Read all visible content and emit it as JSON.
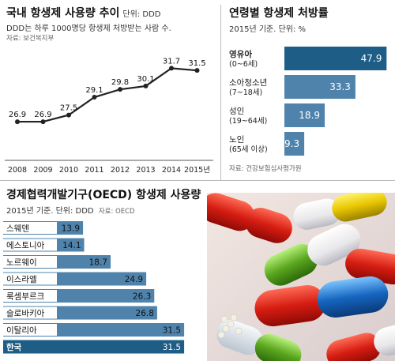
{
  "trend": {
    "title": "국내 항생제 사용량 추이",
    "unit": "단위: DDD",
    "subtitle": "DDD는 하루 1000명당 항생제 처방받는 사람 수.",
    "source": "자료: 보건복지부"
  },
  "age": {
    "title": "연령별 항생제 처방률",
    "subtitle": "2015년 기준. 단위: %",
    "source": "자료: 건강보험심사평가원"
  },
  "oecd": {
    "title": "경제협력개발기구(OECD) 항생제 사용량",
    "subtitle": "2015년 기준. 단위: DDD",
    "source_inline": "자료: OECD"
  },
  "colors": {
    "line": "#222222",
    "bar": "#4f83ab",
    "bar_highlight": "#1d5d86",
    "label_bg": "#ffffff"
  },
  "chart_data": [
    {
      "type": "line",
      "x": [
        "2008",
        "2009",
        "2010",
        "2011",
        "2012",
        "2013",
        "2014",
        "2015년"
      ],
      "values": [
        26.9,
        26.9,
        27.5,
        29.1,
        29.8,
        30.1,
        31.7,
        31.5
      ],
      "ylim": [
        24,
        33
      ],
      "grid": false
    },
    {
      "type": "bar",
      "orientation": "horizontal",
      "categories": [
        {
          "lines": [
            "영유아",
            "(0~6세)"
          ]
        },
        {
          "lines": [
            "소아청소년",
            "(7~18세)"
          ]
        },
        {
          "lines": [
            "성인",
            "(19~64세)"
          ]
        },
        {
          "lines": [
            "노인",
            "(65세 이상)"
          ]
        }
      ],
      "values": [
        47.9,
        33.3,
        18.9,
        9.3
      ],
      "value_labels": [
        "47.9",
        "33.3",
        "18.9",
        "9.3"
      ],
      "highlight_index": 0,
      "xlim": [
        0,
        50
      ]
    },
    {
      "type": "bar",
      "orientation": "horizontal",
      "categories": [
        "스웨덴",
        "에스토니아",
        "노르웨이",
        "이스라엘",
        "룩셈부르크",
        "슬로바키아",
        "이탈리아",
        "한국"
      ],
      "values": [
        13.9,
        14.1,
        18.7,
        24.9,
        26.3,
        26.8,
        31.5,
        31.5
      ],
      "value_labels": [
        "13.9",
        "14.1",
        "18.7",
        "24.9",
        "26.3",
        "26.8",
        "31.5",
        "31.5"
      ],
      "highlight_index": 7,
      "xlim": [
        0,
        33
      ]
    }
  ]
}
